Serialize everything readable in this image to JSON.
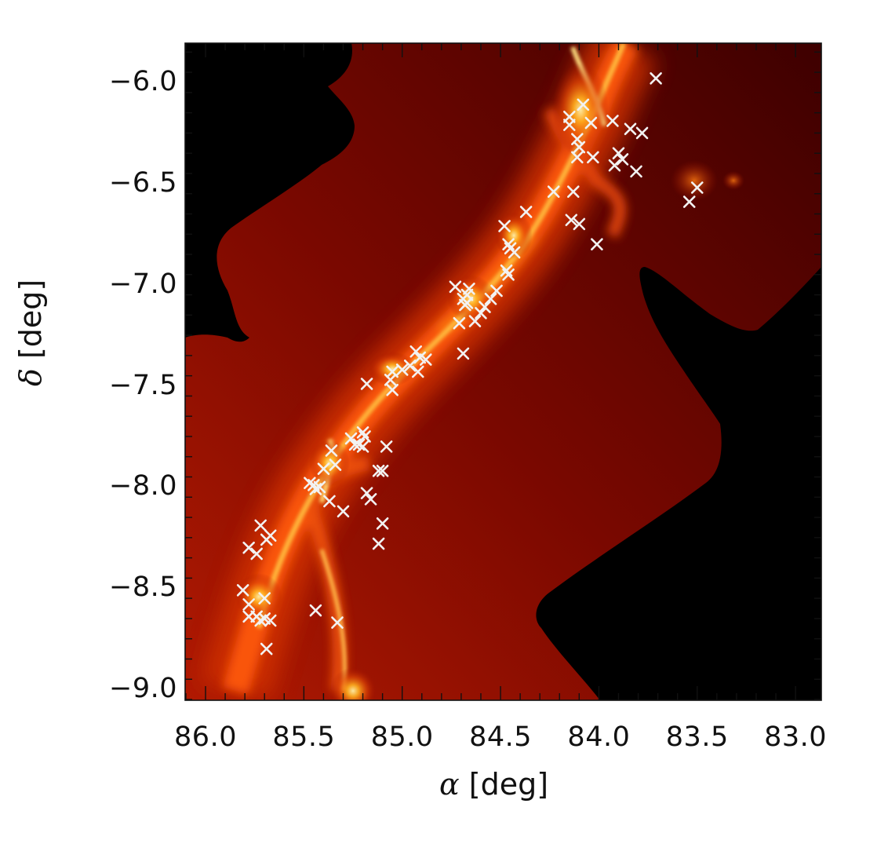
{
  "chart_data": {
    "type": "scatter",
    "subtype": "image-with-markers",
    "title": "",
    "xlabel": "α [deg]",
    "ylabel": "δ [deg]",
    "xlabel_symbol": "α",
    "ylabel_symbol": "δ",
    "axis_unit": "[deg]",
    "xlim": [
      86.1,
      82.95
    ],
    "ylim": [
      -9.06,
      -5.81
    ],
    "x_ticks": [
      86.0,
      85.5,
      85.0,
      84.5,
      84.0,
      83.5,
      83.0
    ],
    "x_tick_labels": [
      "86.0",
      "85.5",
      "85.0",
      "84.5",
      "84.0",
      "83.5",
      "83.0"
    ],
    "y_ticks": [
      -6.0,
      -6.5,
      -7.0,
      -7.5,
      -8.0,
      -8.5,
      -9.0
    ],
    "y_tick_labels": [
      "−6.0",
      "−6.5",
      "−7.0",
      "−7.5",
      "−8.0",
      "−8.5",
      "−9.0"
    ],
    "x_direction": "decreasing (RA increases to the left)",
    "grid": false,
    "legend": null,
    "colormap": "black-red-orange-yellow-white (hot)",
    "background_image": "dust emission map of a filamentary molecular cloud, masked (black) outside survey coverage",
    "marker": {
      "symbol": "x",
      "color": "#f2f2f2"
    },
    "series": [
      {
        "name": "sources",
        "points": [
          [
            83.71,
            -5.98
          ],
          [
            84.08,
            -6.11
          ],
          [
            84.15,
            -6.17
          ],
          [
            84.15,
            -6.21
          ],
          [
            84.04,
            -6.2
          ],
          [
            83.93,
            -6.19
          ],
          [
            83.84,
            -6.23
          ],
          [
            83.78,
            -6.25
          ],
          [
            84.11,
            -6.28
          ],
          [
            84.1,
            -6.32
          ],
          [
            84.11,
            -6.37
          ],
          [
            84.03,
            -6.37
          ],
          [
            83.9,
            -6.35
          ],
          [
            83.88,
            -6.38
          ],
          [
            83.92,
            -6.41
          ],
          [
            83.81,
            -6.44
          ],
          [
            83.5,
            -6.52
          ],
          [
            83.54,
            -6.59
          ],
          [
            84.23,
            -6.54
          ],
          [
            84.13,
            -6.54
          ],
          [
            84.37,
            -6.64
          ],
          [
            84.14,
            -6.68
          ],
          [
            84.1,
            -6.7
          ],
          [
            84.01,
            -6.8
          ],
          [
            84.48,
            -6.71
          ],
          [
            84.46,
            -6.8
          ],
          [
            84.43,
            -6.84
          ],
          [
            84.45,
            -6.82
          ],
          [
            84.47,
            -6.93
          ],
          [
            84.46,
            -6.95
          ],
          [
            84.73,
            -7.01
          ],
          [
            84.66,
            -7.02
          ],
          [
            84.67,
            -7.05
          ],
          [
            84.69,
            -7.07
          ],
          [
            84.67,
            -7.09
          ],
          [
            84.68,
            -7.1
          ],
          [
            84.52,
            -7.03
          ],
          [
            84.55,
            -7.07
          ],
          [
            84.58,
            -7.11
          ],
          [
            84.6,
            -7.14
          ],
          [
            84.63,
            -7.18
          ],
          [
            84.71,
            -7.19
          ],
          [
            84.69,
            -7.34
          ],
          [
            84.93,
            -7.33
          ],
          [
            84.91,
            -7.36
          ],
          [
            84.88,
            -7.37
          ],
          [
            84.96,
            -7.4
          ],
          [
            84.92,
            -7.43
          ],
          [
            85.0,
            -7.42
          ],
          [
            85.05,
            -7.43
          ],
          [
            85.06,
            -7.47
          ],
          [
            85.05,
            -7.52
          ],
          [
            85.18,
            -7.49
          ],
          [
            85.2,
            -7.73
          ],
          [
            85.19,
            -7.75
          ],
          [
            85.26,
            -7.76
          ],
          [
            85.24,
            -7.79
          ],
          [
            85.2,
            -7.8
          ],
          [
            85.22,
            -7.79
          ],
          [
            85.08,
            -7.8
          ],
          [
            85.36,
            -7.82
          ],
          [
            85.34,
            -7.89
          ],
          [
            85.4,
            -7.91
          ],
          [
            85.47,
            -7.98
          ],
          [
            85.45,
            -7.99
          ],
          [
            85.42,
            -8.0
          ],
          [
            85.44,
            -8.01
          ],
          [
            85.37,
            -8.07
          ],
          [
            85.3,
            -8.12
          ],
          [
            85.18,
            -8.03
          ],
          [
            85.16,
            -8.06
          ],
          [
            85.1,
            -7.92
          ],
          [
            85.12,
            -7.92
          ],
          [
            85.1,
            -8.18
          ],
          [
            85.12,
            -8.28
          ],
          [
            85.72,
            -8.19
          ],
          [
            85.67,
            -8.24
          ],
          [
            85.69,
            -8.26
          ],
          [
            85.78,
            -8.3
          ],
          [
            85.74,
            -8.33
          ],
          [
            85.81,
            -8.51
          ],
          [
            85.78,
            -8.58
          ],
          [
            85.7,
            -8.55
          ],
          [
            85.78,
            -8.64
          ],
          [
            85.74,
            -8.64
          ],
          [
            85.72,
            -8.66
          ],
          [
            85.7,
            -8.65
          ],
          [
            85.67,
            -8.66
          ],
          [
            85.69,
            -8.8
          ],
          [
            85.44,
            -8.61
          ],
          [
            85.33,
            -8.67
          ]
        ]
      }
    ]
  },
  "figure": {
    "y_axis_title_symbol": "δ",
    "y_axis_title_unit": "[deg]",
    "x_axis_title_symbol": "α",
    "x_axis_title_unit": "[deg]"
  }
}
